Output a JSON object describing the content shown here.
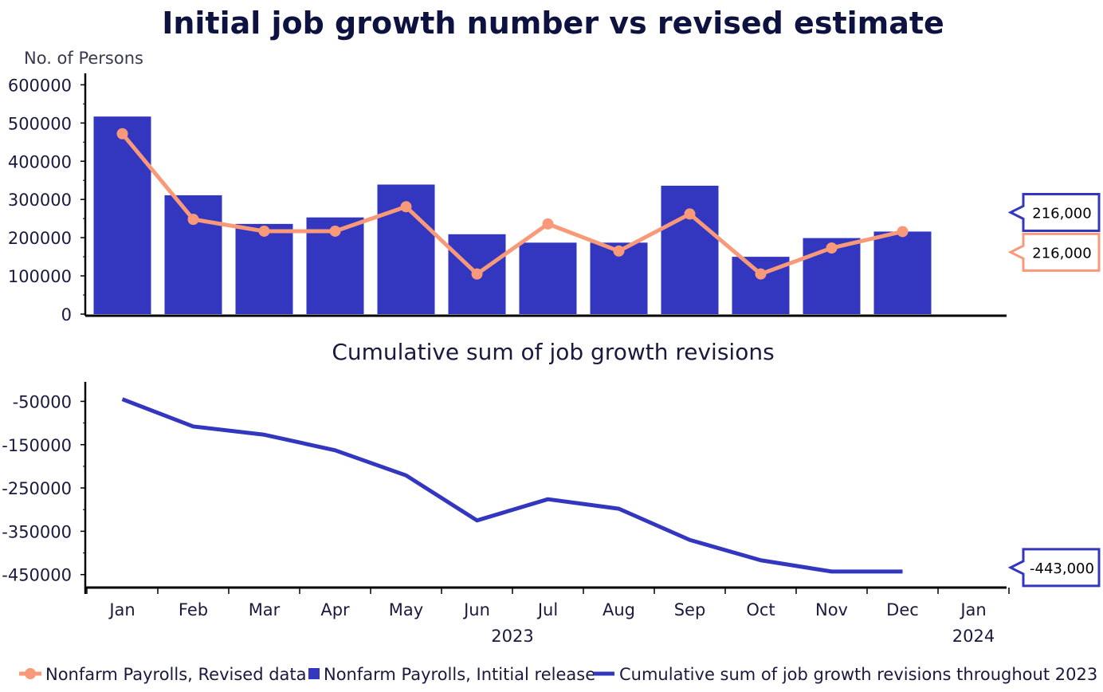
{
  "chart_data": [
    {
      "type": "bar+line",
      "title": "Initial job growth number vs revised estimate",
      "ylabel": "No. of Persons",
      "ylim": [
        0,
        630000
      ],
      "yticks": [
        0,
        100000,
        200000,
        300000,
        400000,
        500000,
        600000
      ],
      "categories": [
        "Jan",
        "Feb",
        "Mar",
        "Apr",
        "May",
        "Jun",
        "Jul",
        "Aug",
        "Sep",
        "Oct",
        "Nov",
        "Dec"
      ],
      "series": [
        {
          "name": "Nonfarm Payrolls, Intitial release",
          "kind": "bar",
          "color": "#3337bf",
          "values": [
            517000,
            311000,
            236000,
            253000,
            339000,
            209000,
            187000,
            187000,
            336000,
            150000,
            199000,
            216000
          ]
        },
        {
          "name": "Nonfarm Payrolls, Revised data",
          "kind": "line",
          "color": "#f89a7a",
          "values": [
            472000,
            248000,
            217000,
            217000,
            281000,
            105000,
            236000,
            165000,
            262000,
            105000,
            173000,
            216000
          ]
        }
      ],
      "callouts": [
        {
          "label": "216,000",
          "color": "#3337bf",
          "value": 266000
        },
        {
          "label": "216,000",
          "color": "#f89a7a",
          "value": 162000
        }
      ]
    },
    {
      "type": "line",
      "title": "Cumulative sum of job growth revisions",
      "ylim": [
        -480000,
        -5000
      ],
      "yticks": [
        -50000,
        -150000,
        -250000,
        -350000,
        -450000
      ],
      "categories": [
        "Jan",
        "Feb",
        "Mar",
        "Apr",
        "May",
        "Jun",
        "Jul",
        "Aug",
        "Sep",
        "Oct",
        "Nov",
        "Dec"
      ],
      "series": [
        {
          "name": "Cumulative sum of job growth revisions throughout 2023",
          "kind": "line",
          "color": "#3337bf",
          "values": [
            -45000,
            -108000,
            -127000,
            -163000,
            -221000,
            -325000,
            -276000,
            -298000,
            -370000,
            -417000,
            -443000,
            -443000
          ]
        }
      ],
      "callouts": [
        {
          "label": "-443,000",
          "color": "#3337bf",
          "value": -443000
        }
      ],
      "x_axis": {
        "months": [
          "Jan",
          "Feb",
          "Mar",
          "Apr",
          "May",
          "Jun",
          "Jul",
          "Aug",
          "Sep",
          "Oct",
          "Nov",
          "Dec",
          "Jan"
        ],
        "years": [
          {
            "label": "2023",
            "at_month": 5.5
          },
          {
            "label": "2024",
            "at_month": 12
          }
        ]
      }
    }
  ],
  "legend": [
    {
      "label": "Nonfarm Payrolls, Revised data",
      "symbol": "line-dot",
      "color": "#f89a7a"
    },
    {
      "label": "Nonfarm Payrolls, Intitial release",
      "symbol": "square",
      "color": "#3337bf"
    },
    {
      "label": "Cumulative sum of job growth revisions throughout 2023",
      "symbol": "line",
      "color": "#3337bf"
    }
  ]
}
